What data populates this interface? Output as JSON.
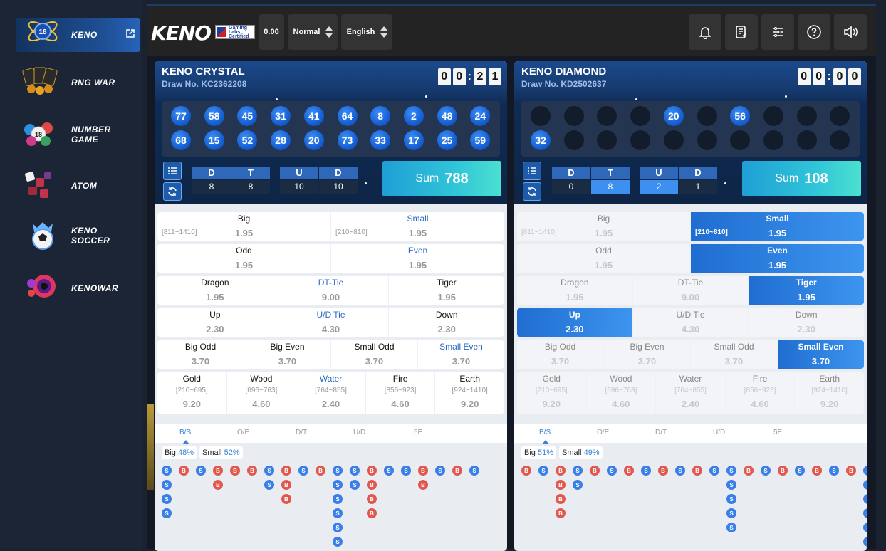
{
  "sidebar": {
    "items": [
      {
        "label": "KENO",
        "icon": "keno-logo-icon",
        "active": true
      },
      {
        "label": "RNG WAR",
        "icon": "rng-war-logo-icon"
      },
      {
        "label": "NUMBER GAME",
        "icon": "number-game-logo-icon"
      },
      {
        "label": "ATOM",
        "icon": "atom-logo-icon"
      },
      {
        "label": "KENO SOCCER",
        "icon": "keno-soccer-logo-icon"
      },
      {
        "label": "KENOWAR",
        "icon": "kenowar-logo-icon"
      }
    ],
    "ball_number": "18"
  },
  "topbar": {
    "brand": "KENO",
    "gli_label": "Gaming Labs Certified",
    "balance": "0.00",
    "mode": "Normal",
    "language": "English",
    "icons": [
      "bell-icon",
      "bet-history-icon",
      "settings-list-icon",
      "help-icon",
      "sound-icon"
    ]
  },
  "panels": [
    {
      "title": "KENO CRYSTAL",
      "draw": "Draw No. KC2362208",
      "timer": [
        "0",
        "0",
        "2",
        "1"
      ],
      "balls": [
        "77",
        "58",
        "45",
        "31",
        "41",
        "64",
        "8",
        "2",
        "48",
        "24",
        "68",
        "15",
        "52",
        "28",
        "20",
        "73",
        "33",
        "17",
        "25",
        "59"
      ],
      "dt": {
        "d_label": "D",
        "t_label": "T",
        "d": "8",
        "t": "8"
      },
      "ud": {
        "u_label": "U",
        "d_label": "D",
        "u": "10",
        "d": "10"
      },
      "sum_label": "Sum",
      "sum": "788",
      "bets": {
        "big": {
          "name": "Big",
          "range": "[811~1410]",
          "odds": "1.95"
        },
        "small": {
          "name": "Small",
          "range": "[210~810]",
          "odds": "1.95"
        },
        "odd": {
          "name": "Odd",
          "odds": "1.95"
        },
        "even": {
          "name": "Even",
          "odds": "1.95"
        },
        "dragon": {
          "name": "Dragon",
          "odds": "1.95"
        },
        "dt_tie": {
          "name": "DT-Tie",
          "odds": "9.00"
        },
        "tiger": {
          "name": "Tiger",
          "odds": "1.95"
        },
        "up": {
          "name": "Up",
          "odds": "2.30"
        },
        "ud_tie": {
          "name": "U/D Tie",
          "odds": "4.30"
        },
        "down": {
          "name": "Down",
          "odds": "2.30"
        },
        "big_odd": {
          "name": "Big Odd",
          "odds": "3.70"
        },
        "big_even": {
          "name": "Big Even",
          "odds": "3.70"
        },
        "small_odd": {
          "name": "Small Odd",
          "odds": "3.70"
        },
        "small_even": {
          "name": "Small Even",
          "odds": "3.70"
        },
        "gold": {
          "name": "Gold",
          "range": "[210~695]",
          "odds": "9.20"
        },
        "wood": {
          "name": "Wood",
          "range": "[696~763]",
          "odds": "4.60"
        },
        "water": {
          "name": "Water",
          "range": "[764~855]",
          "odds": "2.40"
        },
        "fire": {
          "name": "Fire",
          "range": "[856~923]",
          "odds": "4.60"
        },
        "earth": {
          "name": "Earth",
          "range": "[924~1410]",
          "odds": "9.20"
        }
      },
      "tabs": [
        "B/S",
        "O/E",
        "D/T",
        "U/D",
        "5E"
      ],
      "stat_big_label": "Big",
      "stat_big": "48%",
      "stat_small_label": "Small",
      "stat_small": "52%",
      "road": [
        "SSSS",
        "B",
        "S",
        "BB",
        "B",
        "B",
        "SS",
        "BBB",
        "S",
        "B",
        "SSSSSS",
        "SS",
        "BBBB",
        "S",
        "S",
        "BB",
        "S",
        "B",
        "S"
      ]
    },
    {
      "title": "KENO DIAMOND",
      "draw": "Draw No. KD2502637",
      "timer": [
        "0",
        "0",
        "0",
        "0"
      ],
      "balls": [
        "",
        "",
        "",
        "",
        "20",
        "",
        "56",
        "",
        "",
        "",
        "32",
        "",
        "",
        "",
        "",
        "",
        "",
        "",
        "",
        ""
      ],
      "dt": {
        "d_label": "D",
        "t_label": "T",
        "d": "0",
        "t": "8"
      },
      "ud": {
        "u_label": "U",
        "d_label": "D",
        "u": "2",
        "d": "1"
      },
      "sum_label": "Sum",
      "sum": "108",
      "bets": {
        "big": {
          "name": "Big",
          "range": "[811~1410]",
          "odds": "1.95"
        },
        "small": {
          "name": "Small",
          "range": "[210~810]",
          "odds": "1.95"
        },
        "odd": {
          "name": "Odd",
          "odds": "1.95"
        },
        "even": {
          "name": "Even",
          "odds": "1.95"
        },
        "dragon": {
          "name": "Dragon",
          "odds": "1.95"
        },
        "dt_tie": {
          "name": "DT-Tie",
          "odds": "9.00"
        },
        "tiger": {
          "name": "Tiger",
          "odds": "1.95"
        },
        "up": {
          "name": "Up",
          "odds": "2.30"
        },
        "ud_tie": {
          "name": "U/D Tie",
          "odds": "4.30"
        },
        "down": {
          "name": "Down",
          "odds": "2.30"
        },
        "big_odd": {
          "name": "Big Odd",
          "odds": "3.70"
        },
        "big_even": {
          "name": "Big Even",
          "odds": "3.70"
        },
        "small_odd": {
          "name": "Small Odd",
          "odds": "3.70"
        },
        "small_even": {
          "name": "Small Even",
          "odds": "3.70"
        },
        "gold": {
          "name": "Gold",
          "range": "[210~695]",
          "odds": "9.20"
        },
        "wood": {
          "name": "Wood",
          "range": "[696~763]",
          "odds": "4.60"
        },
        "water": {
          "name": "Water",
          "range": "[764~855]",
          "odds": "2.40"
        },
        "fire": {
          "name": "Fire",
          "range": "[856~923]",
          "odds": "4.60"
        },
        "earth": {
          "name": "Earth",
          "range": "[924~1410]",
          "odds": "9.20"
        }
      },
      "tabs": [
        "B/S",
        "O/E",
        "D/T",
        "U/D",
        "5E"
      ],
      "stat_big_label": "Big",
      "stat_big": "51%",
      "stat_small_label": "Small",
      "stat_small": "49%",
      "road": [
        "B",
        "S",
        "BBBB",
        "SS",
        "B",
        "S",
        "B",
        "S",
        "B",
        "S",
        "B",
        "S",
        "SSSSS",
        "B",
        "S",
        "B",
        "S",
        "B",
        "S",
        "B",
        "SSSSSS"
      ]
    }
  ],
  "colors": {
    "accent": "#2f68b8",
    "small_ball": "#3a7ee8",
    "big_ball": "#e2584e",
    "sum_gradient": "#2fc4d8"
  }
}
